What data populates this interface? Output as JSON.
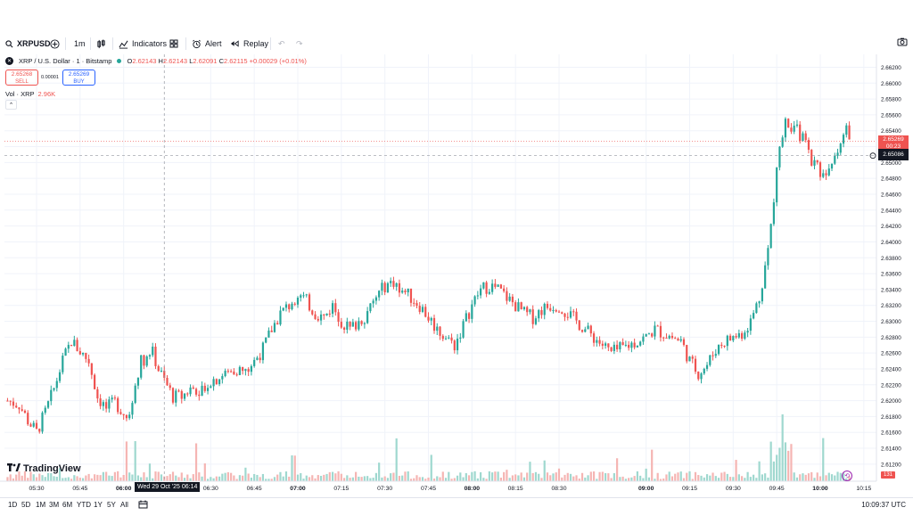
{
  "toolbar": {
    "symbol": "XRPUSD",
    "interval": "1m",
    "indicators_label": "Indicators",
    "alert_label": "Alert",
    "replay_label": "Replay"
  },
  "legend": {
    "title": "XRP / U.S. Dollar · 1 · Bitstamp",
    "o_label": "O",
    "o": "2.62143",
    "h_label": "H",
    "h": "2.62143",
    "l_label": "L",
    "l": "2.62091",
    "c_label": "C",
    "c": "2.62115",
    "change": "+0.00029 (+0.01%)"
  },
  "trade": {
    "sell_price": "2.65268",
    "sell_label": "SELL",
    "buy_price": "2.65269",
    "buy_label": "BUY",
    "spread": "0.00001"
  },
  "volume_legend": {
    "label": "Vol · XRP",
    "value": "2.96K"
  },
  "watermark": "TradingView",
  "price_tags": {
    "last": "2.65269",
    "countdown": "00:23",
    "crosshair": "2.65086"
  },
  "volume_tag": "131",
  "crosshair_time": "Wed 29 Oct '25   06:14",
  "ranges": [
    "1D",
    "5D",
    "1M",
    "3M",
    "6M",
    "YTD",
    "1Y",
    "5Y",
    "All"
  ],
  "clock": "10:09:37 UTC",
  "colors": {
    "up": "#26a69a",
    "down": "#ef5350",
    "up_vol": "#9fd8cf",
    "down_vol": "#f5b5b3",
    "accent": "#2962ff"
  },
  "chart_data": {
    "type": "candlestick",
    "interval": "1m",
    "yticks": [
      "2.66200",
      "2.66000",
      "2.65800",
      "2.65600",
      "2.65400",
      "2.65200",
      "2.65000",
      "2.64800",
      "2.64600",
      "2.64400",
      "2.64200",
      "2.64000",
      "2.63800",
      "2.63600",
      "2.63400",
      "2.63200",
      "2.63000",
      "2.62800",
      "2.62600",
      "2.62400",
      "2.62200",
      "2.62000",
      "2.61800",
      "2.61600",
      "2.61400",
      "2.61200"
    ],
    "ylim": [
      2.6112,
      2.6625
    ],
    "xtick_labels": [
      "05:30",
      "05:45",
      "06:00",
      "06:30",
      "06:45",
      "07:00",
      "07:15",
      "07:30",
      "07:45",
      "08:00",
      "08:15",
      "08:30",
      "09:00",
      "09:15",
      "09:30",
      "09:45",
      "10:00",
      "10:15"
    ],
    "xtick_minutes": [
      330,
      345,
      360,
      390,
      405,
      420,
      435,
      450,
      465,
      480,
      495,
      510,
      540,
      555,
      570,
      585,
      600,
      615
    ],
    "start_minute": 320,
    "close_anchors": [
      [
        320,
        2.62
      ],
      [
        324,
        2.6195
      ],
      [
        327,
        2.6175
      ],
      [
        330,
        2.616
      ],
      [
        333,
        2.6185
      ],
      [
        336,
        2.6215
      ],
      [
        339,
        2.625
      ],
      [
        342,
        2.6275
      ],
      [
        345,
        2.6262
      ],
      [
        348,
        2.625
      ],
      [
        351,
        2.6205
      ],
      [
        354,
        2.619
      ],
      [
        357,
        2.6198
      ],
      [
        360,
        2.6185
      ],
      [
        362,
        2.6175
      ],
      [
        364,
        2.6225
      ],
      [
        366,
        2.625
      ],
      [
        368,
        2.6255
      ],
      [
        370,
        2.626
      ],
      [
        372,
        2.624
      ],
      [
        374,
        2.6225
      ],
      [
        377,
        2.6205
      ],
      [
        380,
        2.6205
      ],
      [
        383,
        2.6215
      ],
      [
        386,
        2.6215
      ],
      [
        390,
        2.6225
      ],
      [
        393,
        2.623
      ],
      [
        396,
        2.6235
      ],
      [
        399,
        2.624
      ],
      [
        402,
        2.6235
      ],
      [
        405,
        2.625
      ],
      [
        408,
        2.6265
      ],
      [
        411,
        2.629
      ],
      [
        414,
        2.631
      ],
      [
        417,
        2.632
      ],
      [
        420,
        2.6335
      ],
      [
        423,
        2.6325
      ],
      [
        426,
        2.631
      ],
      [
        429,
        2.6305
      ],
      [
        432,
        2.632
      ],
      [
        435,
        2.63
      ],
      [
        438,
        2.629
      ],
      [
        441,
        2.63
      ],
      [
        444,
        2.631
      ],
      [
        447,
        2.633
      ],
      [
        450,
        2.6345
      ],
      [
        453,
        2.635
      ],
      [
        456,
        2.634
      ],
      [
        459,
        2.633
      ],
      [
        462,
        2.632
      ],
      [
        465,
        2.6305
      ],
      [
        468,
        2.629
      ],
      [
        471,
        2.628
      ],
      [
        474,
        2.627
      ],
      [
        477,
        2.6295
      ],
      [
        480,
        2.632
      ],
      [
        483,
        2.634
      ],
      [
        486,
        2.6345
      ],
      [
        489,
        2.634
      ],
      [
        492,
        2.633
      ],
      [
        495,
        2.632
      ],
      [
        498,
        2.631
      ],
      [
        501,
        2.6305
      ],
      [
        504,
        2.6315
      ],
      [
        507,
        2.632
      ],
      [
        510,
        2.632
      ],
      [
        513,
        2.631
      ],
      [
        516,
        2.63
      ],
      [
        519,
        2.629
      ],
      [
        522,
        2.628
      ],
      [
        525,
        2.627
      ],
      [
        528,
        2.626
      ],
      [
        531,
        2.6265
      ],
      [
        534,
        2.627
      ],
      [
        537,
        2.6275
      ],
      [
        540,
        2.628
      ],
      [
        543,
        2.629
      ],
      [
        546,
        2.6285
      ],
      [
        549,
        2.628
      ],
      [
        552,
        2.6275
      ],
      [
        555,
        2.625
      ],
      [
        558,
        2.6235
      ],
      [
        561,
        2.6245
      ],
      [
        564,
        2.6265
      ],
      [
        567,
        2.6275
      ],
      [
        570,
        2.628
      ],
      [
        573,
        2.6285
      ],
      [
        576,
        2.63
      ],
      [
        579,
        2.633
      ],
      [
        582,
        2.639
      ],
      [
        584,
        2.645
      ],
      [
        586,
        2.652
      ],
      [
        588,
        2.655
      ],
      [
        591,
        2.6545
      ],
      [
        594,
        2.653
      ],
      [
        597,
        2.6505
      ],
      [
        600,
        2.649
      ],
      [
        603,
        2.6485
      ],
      [
        606,
        2.652
      ],
      [
        609,
        2.654
      ],
      [
        612,
        2.653
      ]
    ],
    "volume_range": [
      0,
      3.2
    ]
  }
}
